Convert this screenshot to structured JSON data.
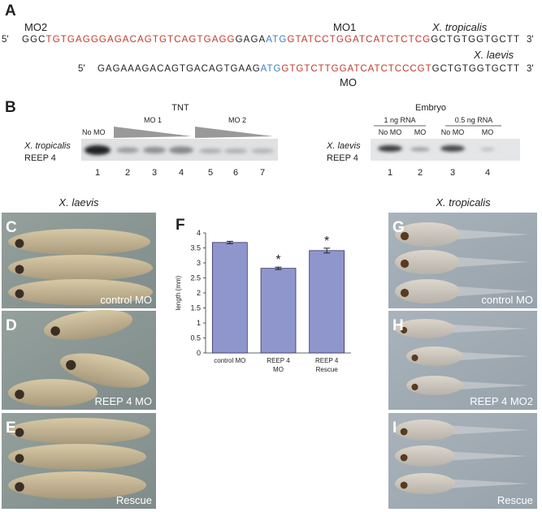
{
  "panel_a": {
    "label": "A",
    "mo2": "MO2",
    "mo1": "MO1",
    "species_1": "X. tropicalis",
    "species_2": "X. laevis",
    "mo": "MO",
    "seq_1": {
      "prime5": "5'",
      "prime3": "3'",
      "segments": [
        {
          "text": "GGC",
          "color": "#222222"
        },
        {
          "text": "TGTGAGGGAGACAGTGTCAGTGAGG",
          "color": "#c0392b"
        },
        {
          "text": "GAGA",
          "color": "#222222"
        },
        {
          "text": "ATG",
          "color": "#3a7fc1"
        },
        {
          "text": "GTATCCTGGATCATCTCTCG",
          "color": "#c0392b"
        },
        {
          "text": "GCTGTGGTGCTT",
          "color": "#222222"
        }
      ]
    },
    "seq_2": {
      "prime5": "5'",
      "prime3": "3'",
      "segments": [
        {
          "text": "GAGAAAGACAGTGACAGTGAAG",
          "color": "#222222"
        },
        {
          "text": "ATG",
          "color": "#3a7fc1"
        },
        {
          "text": "GTGTCTTGGATCATCTCCCGT",
          "color": "#c0392b"
        },
        {
          "text": "GCTGTGGTGCTT",
          "color": "#222222"
        }
      ]
    }
  },
  "panel_b": {
    "label": "B",
    "tnt": {
      "title": "TNT",
      "species": "X. tropicalis",
      "protein": "REEP 4",
      "no_mo": "No MO",
      "mo1": "MO 1",
      "mo2": "MO 2",
      "lanes": [
        "1",
        "2",
        "3",
        "4",
        "5",
        "6",
        "7"
      ]
    },
    "embryo": {
      "title": "Embryo",
      "species": "X. laevis",
      "protein": "REEP 4",
      "dose_1": "1 ng RNA",
      "dose_2": "0.5 ng RNA",
      "columns": [
        "No MO",
        "MO",
        "No MO",
        "MO"
      ],
      "lanes": [
        "1",
        "2",
        "3",
        "4"
      ]
    }
  },
  "images": {
    "left_title": "X. laevis",
    "right_title": "X. tropicalis",
    "left": [
      {
        "label": "C",
        "caption": "control MO"
      },
      {
        "label": "D",
        "caption": "REEP 4 MO"
      },
      {
        "label": "E",
        "caption": "Rescue"
      }
    ],
    "right": [
      {
        "label": "G",
        "caption": "control MO"
      },
      {
        "label": "H",
        "caption": "REEP 4 MO2"
      },
      {
        "label": "I",
        "caption": "Rescue"
      }
    ]
  },
  "chart_data": {
    "type": "bar",
    "label": "F",
    "ylabel": "length (mm)",
    "categories": [
      "control MO",
      "REEP 4\nMO",
      "REEP 4\nRescue"
    ],
    "values": [
      3.68,
      2.82,
      3.41
    ],
    "errors": [
      0.04,
      0.04,
      0.08
    ],
    "value_annotations": [
      null,
      "*",
      "*"
    ],
    "color": "#8f96cc",
    "edge_color": "#333366",
    "ylim": [
      0,
      4
    ],
    "yticks": [
      0,
      0.5,
      1,
      1.5,
      2,
      2.5,
      3,
      3.5,
      4
    ]
  }
}
